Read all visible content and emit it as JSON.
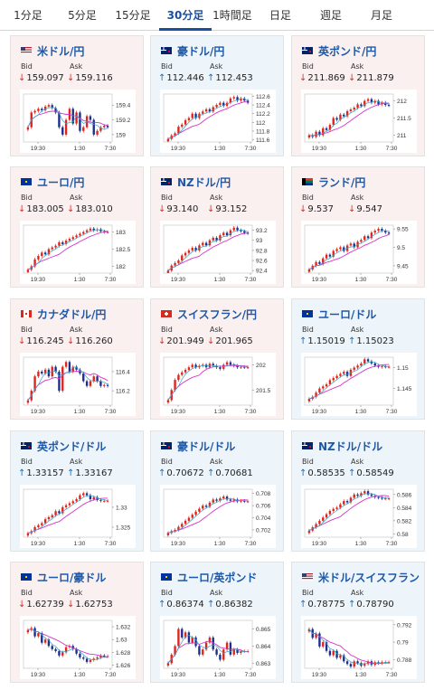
{
  "tabs": [
    {
      "label": "1分足",
      "active": false
    },
    {
      "label": "5分足",
      "active": false
    },
    {
      "label": "15分足",
      "active": false
    },
    {
      "label": "30分足",
      "active": true
    },
    {
      "label": "1時間足",
      "active": false
    },
    {
      "label": "日足",
      "active": false
    },
    {
      "label": "週足",
      "active": false
    },
    {
      "label": "月足",
      "active": false
    }
  ],
  "labels": {
    "bid": "Bid",
    "ask": "Ask"
  },
  "colors": {
    "down_bg": "#fbf0f0",
    "up_bg": "#eef5fa",
    "up_candle": "#e0241b",
    "down_candle": "#1c2f8f",
    "avg_long": "#d633c9",
    "avg_short": "#33a6c8",
    "link": "#1e58a8"
  },
  "cards": [
    {
      "pair": "米ドル/円",
      "icon": "us-jp-flag-icon",
      "trend": "down",
      "bid": "159.097",
      "ask": "159.116",
      "chart": {
        "x_labels": [
          "19:30",
          "1:30",
          "7:30"
        ],
        "y_ticks": [
          159.4,
          159.2,
          159
        ],
        "y_range": [
          158.9,
          159.55
        ],
        "closes": [
          159.1,
          159.3,
          159.32,
          159.35,
          159.33,
          159.38,
          159.4,
          159.36,
          159.3,
          159.1,
          159.0,
          159.2,
          159.35,
          159.15,
          159.3,
          159.05,
          159.1,
          159.25,
          159.2,
          159.0,
          159.05,
          159.1,
          159.12,
          159.1
        ]
      }
    },
    {
      "pair": "豪ドル/円",
      "icon": "au-jp-flag-icon",
      "trend": "up",
      "bid": "112.446",
      "ask": "112.453",
      "chart": {
        "x_labels": [
          "19:30",
          "1:30",
          "7:30"
        ],
        "y_ticks": [
          112.6,
          112.4,
          112.2,
          112,
          111.8,
          111.6
        ],
        "y_range": [
          111.55,
          112.65
        ],
        "closes": [
          111.62,
          111.7,
          111.75,
          111.9,
          111.95,
          112.05,
          112.1,
          112.2,
          112.1,
          112.2,
          112.25,
          112.3,
          112.25,
          112.35,
          112.4,
          112.45,
          112.38,
          112.45,
          112.55,
          112.58,
          112.5,
          112.55,
          112.5,
          112.45
        ]
      }
    },
    {
      "pair": "英ポンド/円",
      "icon": "gb-jp-flag-icon",
      "trend": "down",
      "bid": "211.869",
      "ask": "211.879",
      "chart": {
        "x_labels": [
          "19:30",
          "1:30",
          "7:30"
        ],
        "y_ticks": [
          212,
          211.5,
          211
        ],
        "y_range": [
          210.8,
          212.2
        ],
        "closes": [
          211.0,
          210.95,
          211.1,
          211.0,
          211.2,
          211.15,
          211.3,
          211.5,
          211.45,
          211.6,
          211.55,
          211.7,
          211.75,
          211.8,
          211.9,
          211.85,
          212.0,
          212.05,
          211.95,
          212.0,
          211.9,
          211.95,
          211.88,
          211.87
        ]
      }
    },
    {
      "pair": "ユーロ/円",
      "icon": "eu-jp-flag-icon",
      "trend": "down",
      "bid": "183.005",
      "ask": "183.010",
      "chart": {
        "x_labels": [
          "19:30",
          "1:30",
          "7:30"
        ],
        "y_ticks": [
          183,
          182.5,
          182
        ],
        "y_range": [
          181.8,
          183.2
        ],
        "closes": [
          181.9,
          182.0,
          182.2,
          182.3,
          182.4,
          182.35,
          182.5,
          182.55,
          182.6,
          182.7,
          182.65,
          182.75,
          182.8,
          182.85,
          182.9,
          182.95,
          183.0,
          183.05,
          183.1,
          183.05,
          183.08,
          183.02,
          183.0,
          183.0
        ]
      }
    },
    {
      "pair": "NZドル/円",
      "icon": "nz-jp-flag-icon",
      "trend": "down",
      "bid": "93.140",
      "ask": "93.152",
      "chart": {
        "x_labels": [
          "19:30",
          "1:30",
          "7:30"
        ],
        "y_ticks": [
          93.2,
          93,
          92.8,
          92.6,
          92.4
        ],
        "y_range": [
          92.35,
          93.3
        ],
        "closes": [
          92.4,
          92.5,
          92.55,
          92.6,
          92.7,
          92.75,
          92.8,
          92.85,
          92.8,
          92.9,
          92.95,
          92.9,
          93.0,
          93.05,
          93.0,
          93.1,
          93.15,
          93.1,
          93.2,
          93.25,
          93.2,
          93.18,
          93.15,
          93.14
        ]
      }
    },
    {
      "pair": "ランド/円",
      "icon": "za-jp-flag-icon",
      "trend": "down",
      "bid": "9.537",
      "ask": "9.547",
      "chart": {
        "x_labels": [
          "19:30",
          "1:30",
          "7:30"
        ],
        "y_ticks": [
          9.55,
          9.5,
          9.45
        ],
        "y_range": [
          9.43,
          9.56
        ],
        "closes": [
          9.44,
          9.45,
          9.46,
          9.455,
          9.47,
          9.48,
          9.475,
          9.49,
          9.495,
          9.5,
          9.49,
          9.505,
          9.51,
          9.5,
          9.515,
          9.52,
          9.53,
          9.525,
          9.54,
          9.545,
          9.55,
          9.545,
          9.54,
          9.537
        ]
      }
    },
    {
      "pair": "カナダドル/円",
      "icon": "ca-jp-flag-icon",
      "trend": "down",
      "bid": "116.245",
      "ask": "116.260",
      "chart": {
        "x_labels": [
          "19:30",
          "1:30",
          "7:30"
        ],
        "y_ticks": [
          116.4,
          116.2
        ],
        "y_range": [
          116.05,
          116.55
        ],
        "closes": [
          116.1,
          116.2,
          116.35,
          116.4,
          116.38,
          116.42,
          116.35,
          116.45,
          116.4,
          116.2,
          116.45,
          116.5,
          116.4,
          116.45,
          116.42,
          116.38,
          116.3,
          116.25,
          116.3,
          116.35,
          116.3,
          116.25,
          116.26,
          116.25
        ]
      }
    },
    {
      "pair": "スイスフラン/円",
      "icon": "ch-jp-flag-icon",
      "trend": "down",
      "bid": "201.949",
      "ask": "201.965",
      "chart": {
        "x_labels": [
          "19:30",
          "1:30",
          "7:30"
        ],
        "y_ticks": [
          202,
          201.5
        ],
        "y_range": [
          201.2,
          202.15
        ],
        "closes": [
          201.3,
          201.5,
          201.7,
          201.8,
          201.85,
          201.9,
          201.95,
          202.0,
          201.95,
          201.98,
          202.0,
          201.95,
          202.02,
          201.98,
          201.95,
          201.92,
          202.0,
          202.05,
          202.0,
          201.98,
          201.95,
          201.96,
          201.95,
          201.95
        ]
      }
    },
    {
      "pair": "ユーロ/ドル",
      "icon": "eu-us-flag-icon",
      "trend": "up",
      "bid": "1.15019",
      "ask": "1.15023",
      "chart": {
        "x_labels": [
          "19:30",
          "1:30",
          "7:30"
        ],
        "y_ticks": [
          1.15,
          1.145
        ],
        "y_range": [
          1.141,
          1.1525
        ],
        "closes": [
          1.1425,
          1.143,
          1.144,
          1.145,
          1.1455,
          1.146,
          1.147,
          1.1475,
          1.148,
          1.1485,
          1.149,
          1.148,
          1.1495,
          1.15,
          1.1505,
          1.151,
          1.152,
          1.1515,
          1.151,
          1.1505,
          1.1502,
          1.1503,
          1.1502,
          1.1502
        ]
      }
    },
    {
      "pair": "英ポンド/ドル",
      "icon": "gb-us-flag-icon",
      "trend": "up",
      "bid": "1.33157",
      "ask": "1.33167",
      "chart": {
        "x_labels": [
          "19:30",
          "1:30",
          "7:30"
        ],
        "y_ticks": [
          1.33,
          1.325
        ],
        "y_range": [
          1.3225,
          1.3345
        ],
        "closes": [
          1.3235,
          1.324,
          1.325,
          1.3255,
          1.326,
          1.327,
          1.3275,
          1.328,
          1.329,
          1.3285,
          1.33,
          1.3305,
          1.331,
          1.3315,
          1.332,
          1.333,
          1.3335,
          1.333,
          1.332,
          1.3325,
          1.3318,
          1.3316,
          1.3316,
          1.3316
        ]
      }
    },
    {
      "pair": "豪ドル/ドル",
      "icon": "au-us-flag-icon",
      "trend": "up",
      "bid": "0.70672",
      "ask": "0.70681",
      "chart": {
        "x_labels": [
          "19:30",
          "1:30",
          "7:30"
        ],
        "y_ticks": [
          0.708,
          0.706,
          0.704,
          0.702
        ],
        "y_range": [
          0.7008,
          0.7087
        ],
        "closes": [
          0.7015,
          0.7018,
          0.702,
          0.7025,
          0.703,
          0.7035,
          0.704,
          0.7045,
          0.705,
          0.7055,
          0.706,
          0.7058,
          0.7065,
          0.707,
          0.7068,
          0.7072,
          0.7075,
          0.707,
          0.7068,
          0.707,
          0.7067,
          0.7068,
          0.7067,
          0.7067
        ]
      }
    },
    {
      "pair": "NZドル/ドル",
      "icon": "nz-us-flag-icon",
      "trend": "up",
      "bid": "0.58535",
      "ask": "0.58549",
      "chart": {
        "x_labels": [
          "19:30",
          "1:30",
          "7:30"
        ],
        "y_ticks": [
          0.586,
          0.584,
          0.582,
          0.58
        ],
        "y_range": [
          0.5795,
          0.5868
        ],
        "closes": [
          0.5805,
          0.581,
          0.5815,
          0.582,
          0.5825,
          0.583,
          0.5835,
          0.5838,
          0.584,
          0.5845,
          0.585,
          0.5848,
          0.5855,
          0.586,
          0.5858,
          0.5862,
          0.5865,
          0.586,
          0.5858,
          0.5856,
          0.5855,
          0.5854,
          0.5854,
          0.5854
        ]
      }
    },
    {
      "pair": "ユーロ/豪ドル",
      "icon": "eu-au-flag-icon",
      "trend": "down",
      "bid": "1.62739",
      "ask": "1.62753",
      "chart": {
        "x_labels": [
          "19:30",
          "1:30",
          "7:30"
        ],
        "y_ticks": [
          1.632,
          1.63,
          1.628,
          1.626
        ],
        "y_range": [
          1.6255,
          1.633
        ],
        "closes": [
          1.6315,
          1.6318,
          1.6305,
          1.631,
          1.6295,
          1.63,
          1.629,
          1.6285,
          1.6282,
          1.6275,
          1.628,
          1.6288,
          1.629,
          1.6285,
          1.6278,
          1.6272,
          1.627,
          1.6265,
          1.6268,
          1.627,
          1.6272,
          1.6275,
          1.6274,
          1.6274
        ]
      }
    },
    {
      "pair": "ユーロ/英ポンド",
      "icon": "eu-gb-flag-icon",
      "trend": "up",
      "bid": "0.86374",
      "ask": "0.86382",
      "chart": {
        "x_labels": [
          "19:30",
          "1:30",
          "7:30"
        ],
        "y_ticks": [
          0.865,
          0.864,
          0.863
        ],
        "y_range": [
          0.8627,
          0.8655
        ],
        "closes": [
          0.863,
          0.8635,
          0.864,
          0.865,
          0.8645,
          0.8648,
          0.8642,
          0.8645,
          0.864,
          0.8635,
          0.8638,
          0.8642,
          0.8645,
          0.8638,
          0.8635,
          0.8632,
          0.8638,
          0.8642,
          0.8635,
          0.8638,
          0.8636,
          0.8637,
          0.8637,
          0.8637
        ]
      }
    },
    {
      "pair": "米ドル/スイスフラン",
      "icon": "us-ch-flag-icon",
      "trend": "up",
      "bid": "0.78775",
      "ask": "0.78790",
      "chart": {
        "x_labels": [
          "19:30",
          "1:30",
          "7:30"
        ],
        "y_ticks": [
          0.792,
          0.79,
          0.788
        ],
        "y_range": [
          0.787,
          0.7925
        ],
        "closes": [
          0.7915,
          0.7905,
          0.791,
          0.7895,
          0.79,
          0.789,
          0.7885,
          0.789,
          0.7882,
          0.7885,
          0.7878,
          0.7875,
          0.7872,
          0.7878,
          0.7876,
          0.7873,
          0.7875,
          0.7878,
          0.7874,
          0.7877,
          0.7876,
          0.7877,
          0.7877,
          0.7877
        ]
      }
    }
  ]
}
